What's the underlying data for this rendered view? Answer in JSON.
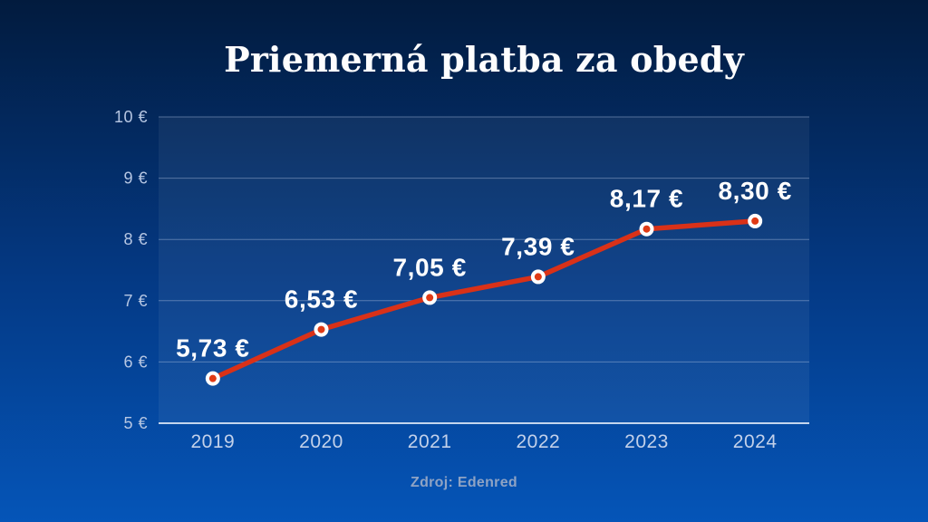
{
  "chart_data": {
    "type": "line",
    "title": "Priemerná platba za obedy",
    "source": "Zdroj: Edenred",
    "categories": [
      "2019",
      "2020",
      "2021",
      "2022",
      "2023",
      "2024"
    ],
    "values": [
      5.73,
      6.53,
      7.05,
      7.39,
      8.17,
      8.3
    ],
    "value_labels": [
      "5,73 €",
      "6,53 €",
      "7,05 €",
      "7,39 €",
      "8,17 €",
      "8,30 €"
    ],
    "series_name": "Priemerná platba za obedy (€)",
    "xlabel": "",
    "ylabel": "",
    "ylim": [
      5,
      10
    ],
    "yticks": [
      5,
      6,
      7,
      8,
      9,
      10
    ],
    "ytick_labels": [
      "5 €",
      "6 €",
      "7 €",
      "8 €",
      "9 €",
      "10 €"
    ],
    "grid": true,
    "legend": "none"
  },
  "colors": {
    "background_top": "#021b3e",
    "background_mid": "#043a86",
    "background_bottom": "#0555b8",
    "line": "#d93118",
    "marker_core": "#e03a15",
    "marker_ring": "#ffffff",
    "plot_fill": "rgba(255,255,255,0.055)",
    "gridline": "rgba(173,193,224,0.45)",
    "axis_line": "rgba(216,228,245,0.9)",
    "ytick_label": "#b7c7e3",
    "xtick_label": "#c3d1ea",
    "point_label": "#ffffff",
    "title_text": "#fdfdfe",
    "source_text": "#8fa3c4"
  }
}
